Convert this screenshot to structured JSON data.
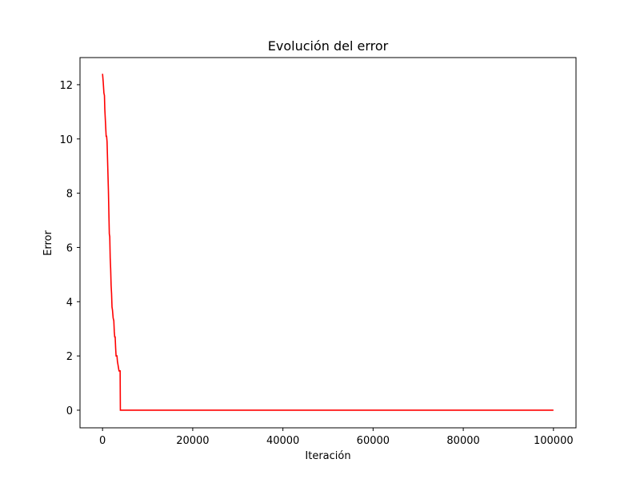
{
  "chart_data": {
    "type": "line",
    "title": "Evolución del error",
    "xlabel": "Iteración",
    "ylabel": "Error",
    "xlim": [
      -5000,
      105000
    ],
    "ylim": [
      -0.65,
      13
    ],
    "xticks": [
      0,
      20000,
      40000,
      60000,
      80000,
      100000
    ],
    "yticks": [
      0,
      2,
      4,
      6,
      8,
      10,
      12
    ],
    "grid": false,
    "legend": "none",
    "series": [
      {
        "color": "#ff0000",
        "x": [
          0,
          150,
          300,
          420,
          500,
          650,
          800,
          900,
          1000,
          1150,
          1300,
          1400,
          1500,
          1600,
          1700,
          1800,
          1900,
          2000,
          2100,
          2200,
          2350,
          2500,
          2600,
          2700,
          2800,
          2900,
          3000,
          3100,
          3200,
          3300,
          3400,
          3500,
          3650,
          3800,
          3900,
          3950,
          100000
        ],
        "y": [
          12.4,
          12.1,
          11.7,
          11.6,
          11.1,
          10.6,
          10.1,
          10.1,
          9.9,
          9.0,
          8.1,
          7.3,
          6.5,
          6.4,
          5.6,
          5.2,
          4.6,
          4.3,
          3.8,
          3.7,
          3.4,
          3.3,
          2.9,
          2.7,
          2.7,
          2.3,
          2.0,
          2.0,
          2.0,
          1.8,
          1.7,
          1.6,
          1.45,
          1.45,
          1.45,
          0.0,
          0.0
        ]
      }
    ]
  }
}
